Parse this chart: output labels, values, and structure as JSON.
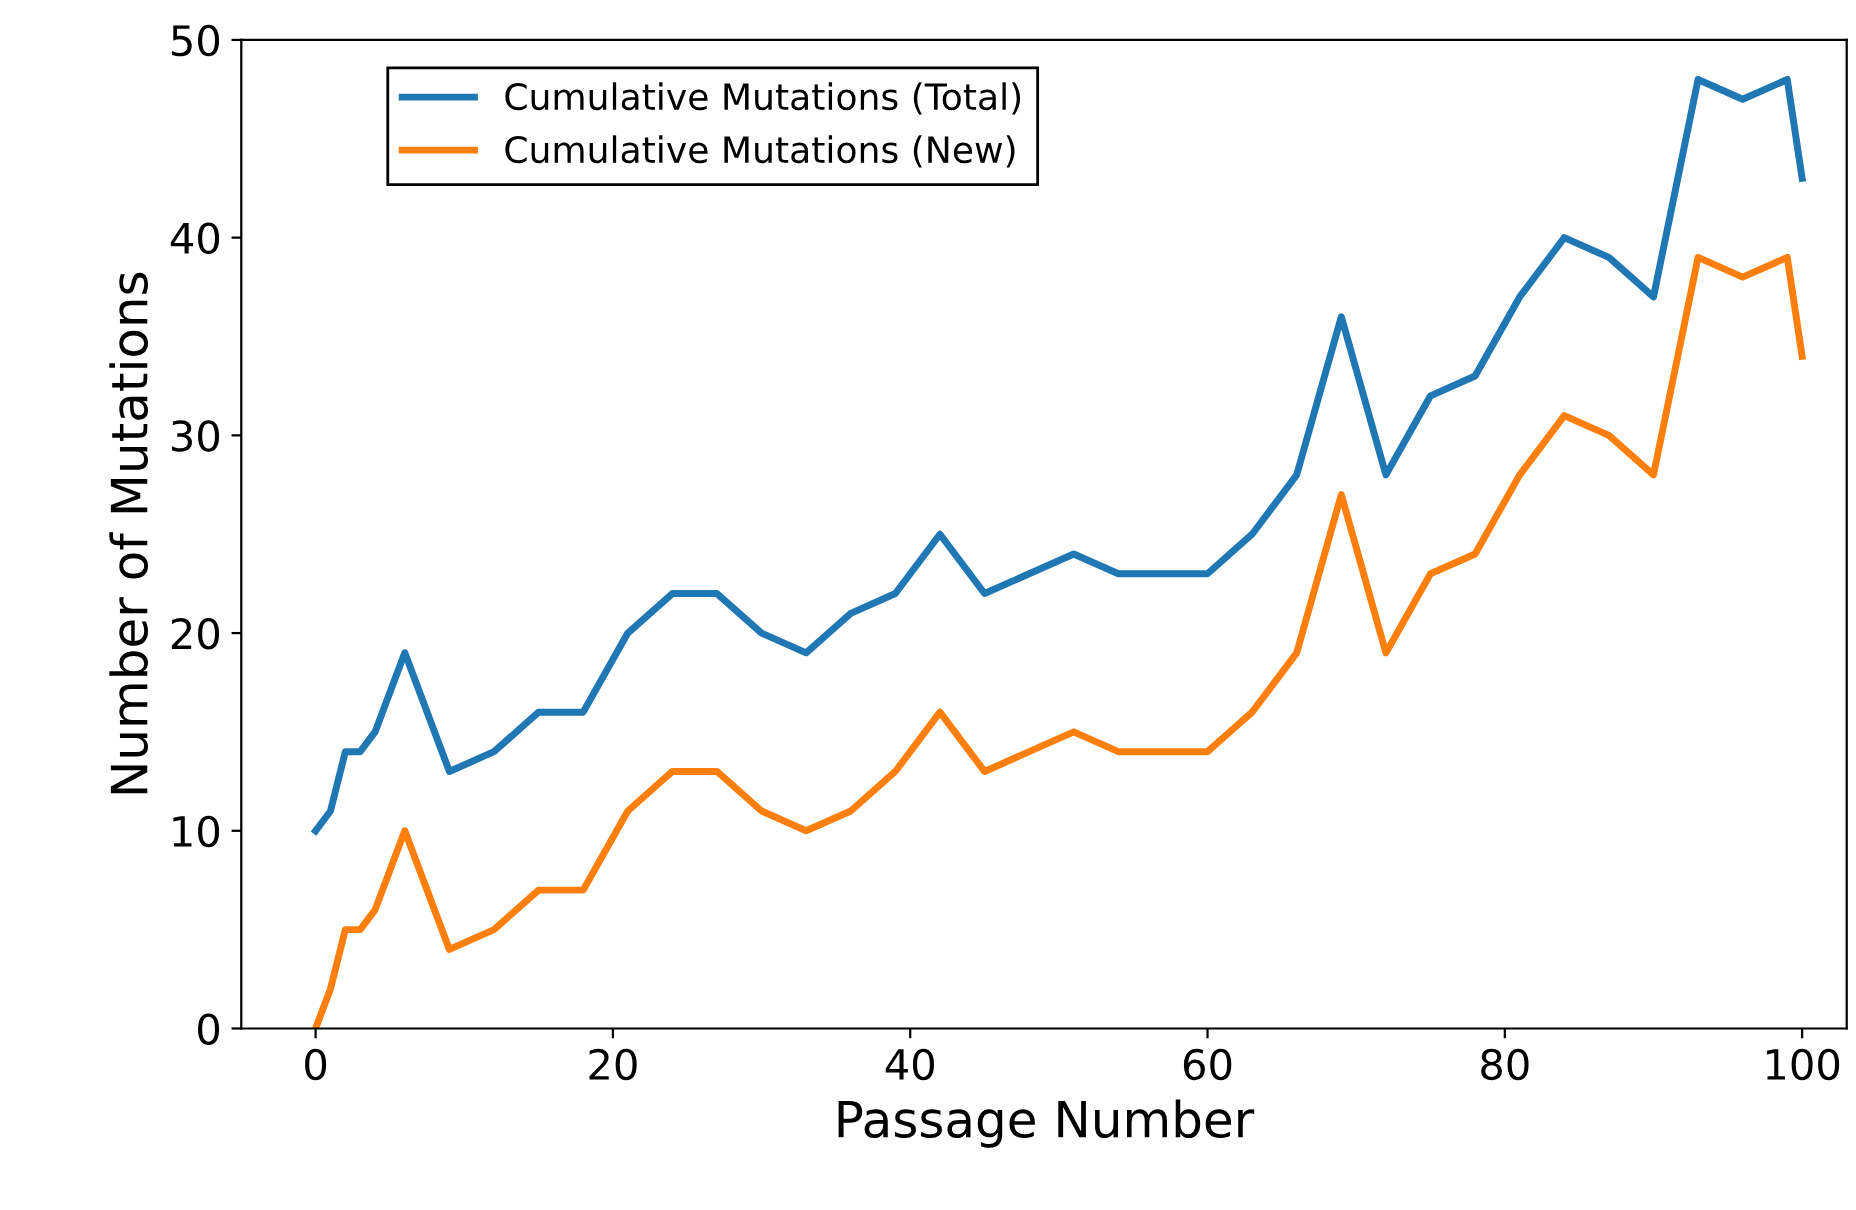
{
  "chart_data": {
    "type": "line",
    "xlabel": "Passage Number",
    "ylabel": "Number of Mutations",
    "x": [
      0,
      1,
      2,
      3,
      4,
      6,
      9,
      12,
      15,
      18,
      21,
      24,
      27,
      30,
      33,
      36,
      39,
      42,
      45,
      48,
      51,
      54,
      57,
      60,
      63,
      66,
      69,
      72,
      75,
      78,
      81,
      84,
      87,
      90,
      93,
      96,
      99,
      100
    ],
    "series": [
      {
        "name": "Cumulative Mutations (Total)",
        "color": "#1f77b4",
        "values": [
          10,
          11,
          14,
          14,
          15,
          19,
          13,
          14,
          16,
          16,
          20,
          22,
          22,
          20,
          19,
          21,
          22,
          25,
          22,
          23,
          24,
          23,
          23,
          23,
          25,
          28,
          36,
          28,
          32,
          33,
          37,
          40,
          39,
          37,
          48,
          47,
          48,
          43
        ]
      },
      {
        "name": "Cumulative Mutations (New)",
        "color": "#ff7f0e",
        "values": [
          0,
          2,
          5,
          5,
          6,
          10,
          4,
          5,
          7,
          7,
          11,
          13,
          13,
          11,
          10,
          11,
          13,
          16,
          13,
          14,
          15,
          14,
          14,
          14,
          16,
          19,
          27,
          19,
          23,
          24,
          28,
          31,
          30,
          28,
          39,
          38,
          39,
          34
        ]
      }
    ],
    "xlim": [
      -5,
      103
    ],
    "ylim": [
      0,
      50
    ],
    "xticks": [
      0,
      20,
      40,
      60,
      80,
      100
    ],
    "yticks": [
      0,
      10,
      20,
      30,
      40,
      50
    ],
    "grid": false,
    "legend": "top left",
    "marker": "none",
    "line_style": "solid"
  }
}
